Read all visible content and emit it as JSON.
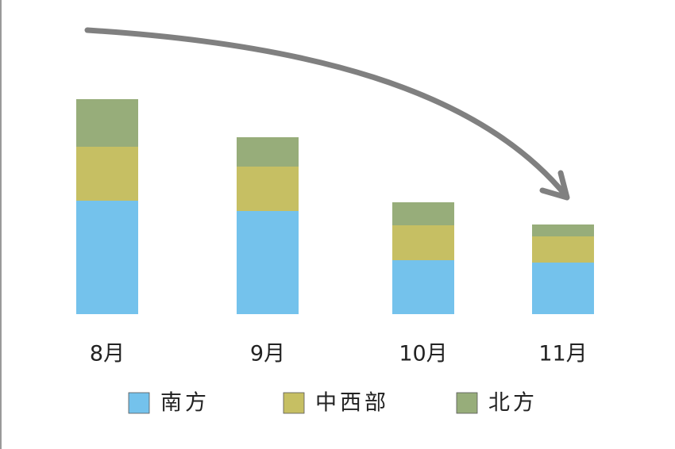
{
  "chart_data": {
    "type": "stacked-bar",
    "categories": [
      "8月",
      "9月",
      "10月",
      "11月"
    ],
    "series": [
      {
        "name": "南方",
        "color": "#74c2ec",
        "values": [
          143,
          130,
          68,
          65
        ]
      },
      {
        "name": "中西部",
        "color": "#c6bf63",
        "values": [
          68,
          56,
          44,
          33
        ]
      },
      {
        "name": "北方",
        "color": "#97ad7a",
        "values": [
          60,
          37,
          29,
          15
        ]
      }
    ]
  }
}
